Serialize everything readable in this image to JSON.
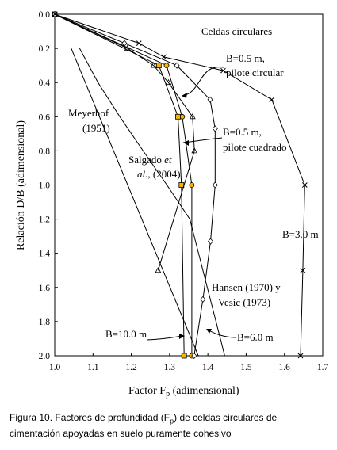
{
  "chart_data": {
    "type": "line",
    "xlabel_main": "Factor F",
    "xlabel_sub": "p",
    "xlabel_rest": " (adimensional)",
    "ylabel": "Relación D/B (adimensional)",
    "xlim": [
      1.0,
      1.7
    ],
    "ylim": [
      0.0,
      2.0
    ],
    "y_inverted": true,
    "x_ticks": [
      "1.0",
      "1.1",
      "1.2",
      "1.3",
      "1.4",
      "1.5",
      "1.6",
      "1.7"
    ],
    "y_ticks": [
      "0.0",
      "0.2",
      "0.4",
      "0.6",
      "0.8",
      "1.0",
      "1.2",
      "1.4",
      "1.6",
      "1.8",
      "2.0"
    ],
    "grid": false,
    "series": [
      {
        "name": "Meyerhof (1951)",
        "marker": "none",
        "x": [
          1.043,
          1.375
        ],
        "y": [
          0.2,
          2.0
        ]
      },
      {
        "name": "Salgado et al. (2004)",
        "marker": "none",
        "x": [
          1.065,
          1.113,
          1.17,
          1.231,
          1.293,
          1.353,
          1.444
        ],
        "y": [
          0.2,
          0.4,
          0.6,
          0.8,
          1.0,
          1.2,
          2.0
        ]
      },
      {
        "name": "B=0.5 m, pilote circular",
        "marker": "circle",
        "color": "#f5b400",
        "x": [
          1.0,
          1.292,
          1.333,
          1.358,
          1.358
        ],
        "y": [
          0.0,
          0.3,
          0.6,
          1.0,
          2.0
        ]
      },
      {
        "name": "B=0.5 m, pilote cuadrado",
        "marker": "square",
        "color": "#f5b400",
        "x": [
          1.0,
          1.272,
          1.322,
          1.331,
          1.338
        ],
        "y": [
          0.0,
          0.3,
          0.6,
          1.0,
          2.0
        ]
      },
      {
        "name": "B=10.0 m",
        "marker": "triangle",
        "x": [
          1.0,
          1.19,
          1.258,
          1.297,
          1.36,
          1.365,
          1.27
        ],
        "y": [
          0.0,
          0.2,
          0.3,
          0.4,
          0.6,
          0.8,
          1.5
        ]
      },
      {
        "name": "B=6.0 m",
        "marker": "diamond",
        "x": [
          1.0,
          1.182,
          1.319,
          1.406,
          1.419,
          1.419,
          1.407,
          1.387,
          1.364
        ],
        "y": [
          0.0,
          0.17,
          0.3,
          0.5,
          0.67,
          1.0,
          1.33,
          1.67,
          2.0
        ]
      },
      {
        "name": "B=3.0 m",
        "marker": "x",
        "x": [
          1.0,
          1.22,
          1.285,
          1.44,
          1.567,
          1.653,
          1.648,
          1.642
        ],
        "y": [
          0.0,
          0.17,
          0.25,
          0.33,
          0.5,
          1.0,
          1.5,
          2.0
        ]
      }
    ],
    "annotations": {
      "celdas": "Celdas circulares",
      "b05c_l1": "B=0.5 m,",
      "b05c_l2": "pilote circular",
      "b05q_l1": "B=0.5 m,",
      "b05q_l2": "pilote cuadrado",
      "meyer_l1": "Meyerhof",
      "meyer_l2": "(1951)",
      "salg_l1a": "Salgado ",
      "salg_l1b": "et",
      "salg_l2a": "al.",
      "salg_l2b": ", (2004)",
      "hansen_l1": "Hansen (1970) y",
      "hansen_l2": "Vesic (1973)",
      "b3": "B=3.0 m",
      "b6": "B=6.0 m",
      "b10": "B=10.0 m"
    }
  },
  "caption": {
    "line1a": "Figura 10. Factores de profundidad (F",
    "line1sub": "p",
    "line1b": ") de celdas circulares de",
    "line2": "cimentación apoyadas en suelo puramente cohesivo"
  }
}
